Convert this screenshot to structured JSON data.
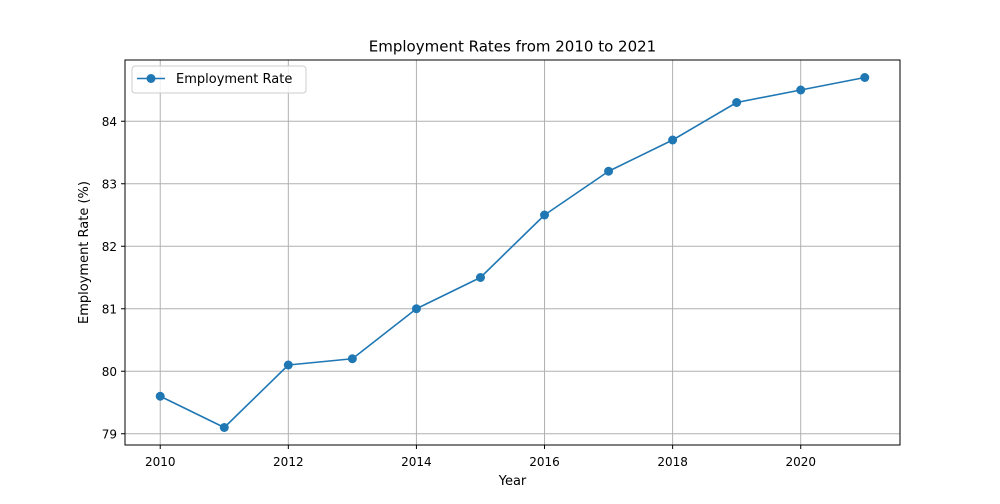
{
  "chart_data": {
    "type": "line",
    "title": "Employment Rates from 2010 to 2021",
    "xlabel": "Year",
    "ylabel": "Employment Rate (%)",
    "x": [
      2010,
      2011,
      2012,
      2013,
      2014,
      2015,
      2016,
      2017,
      2018,
      2019,
      2020,
      2021
    ],
    "series": [
      {
        "name": "Employment Rate",
        "color": "#1f77b4",
        "marker": "circle",
        "values": [
          79.6,
          79.1,
          80.1,
          80.2,
          81.0,
          81.5,
          82.5,
          83.2,
          83.7,
          84.3,
          84.5,
          84.7
        ]
      }
    ],
    "xlim": [
      2009.45,
      2021.55
    ],
    "ylim": [
      78.82,
      84.98
    ],
    "xticks": [
      2010,
      2012,
      2014,
      2016,
      2018,
      2020
    ],
    "yticks": [
      79,
      80,
      81,
      82,
      83,
      84
    ],
    "grid": true,
    "legend_position": "top-left"
  }
}
